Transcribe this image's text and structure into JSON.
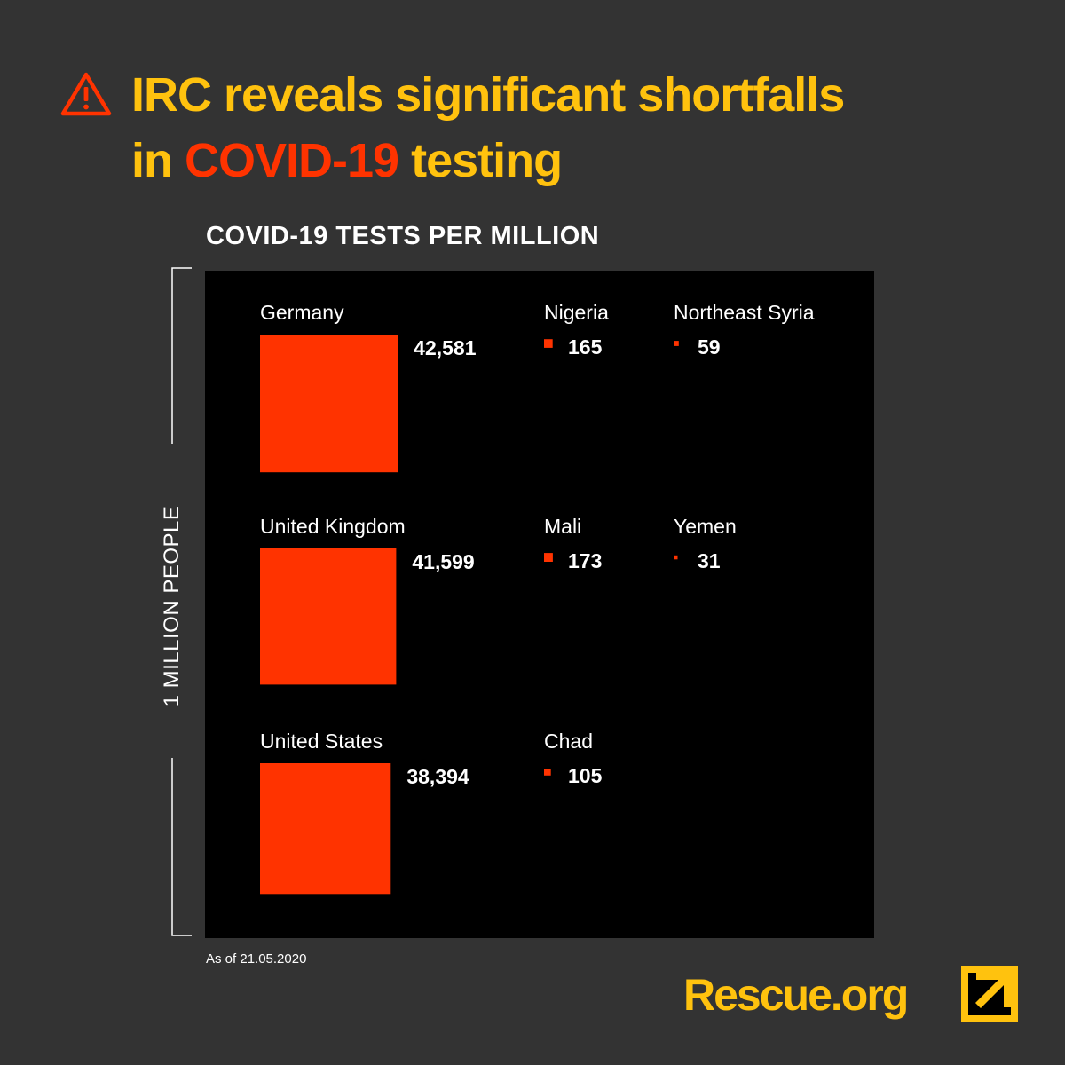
{
  "headline": {
    "line1": "IRC reveals significant shortfalls",
    "line2_prefix": "in ",
    "line2_accent": "COVID-19",
    "line2_suffix": " testing"
  },
  "colors": {
    "background": "#333333",
    "headline": "#FFC20E",
    "accent": "#FF3300",
    "chart_background": "#000000",
    "text": "#ffffff"
  },
  "icons": {
    "warning": "warning-triangle-icon",
    "logo": "irc-logo-icon"
  },
  "brand": "Rescue.org",
  "footnote": "As of 21.05.2020",
  "bracket_label": "1 MILLION PEOPLE",
  "chart_data": {
    "type": "bar",
    "encoding": "square area proportional to tests per million",
    "title": "COVID-19 TESTS PER MILLION",
    "unit": "tests per million",
    "reference": {
      "label": "1 MILLION PEOPLE",
      "value": 1000000
    },
    "items": [
      {
        "country": "Germany",
        "label": "42,581",
        "value": 42581
      },
      {
        "country": "Nigeria",
        "label": "165",
        "value": 165
      },
      {
        "country": "Northeast Syria",
        "label": "59",
        "value": 59
      },
      {
        "country": "United Kingdom",
        "label": "41,599",
        "value": 41599
      },
      {
        "country": "Mali",
        "label": "173",
        "value": 173
      },
      {
        "country": "Yemen",
        "label": "31",
        "value": 31
      },
      {
        "country": "United States",
        "label": "38,394",
        "value": 38394
      },
      {
        "country": "Chad",
        "label": "105",
        "value": 105
      }
    ]
  }
}
